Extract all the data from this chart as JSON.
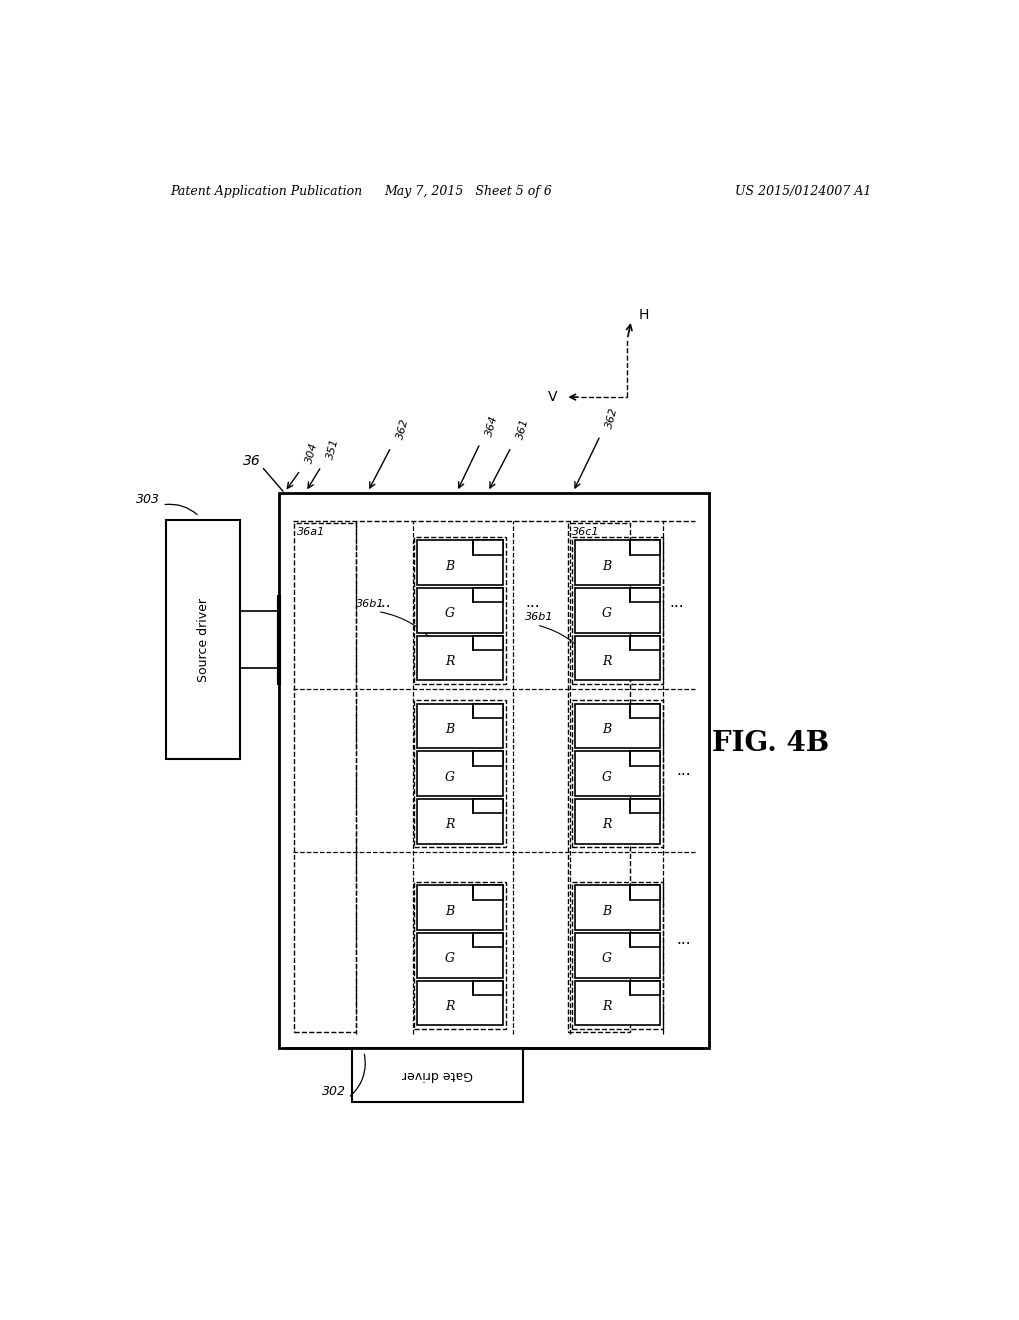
{
  "bg_color": "#ffffff",
  "header_left": "Patent Application Publication",
  "header_mid": "May 7, 2015   Sheet 5 of 6",
  "header_right": "US 2015/0124007 A1",
  "fig_label": "FIG. 4B",
  "source_driver_label": "Source driver",
  "source_driver_ref": "303",
  "gate_driver_label": "Gate driver",
  "gate_driver_ref": "302",
  "panel_ref": "36",
  "label_36a1": "36a1",
  "label_36c1": "36c1",
  "label_36b1": "36b1",
  "ref_labels_top": [
    "304",
    "351",
    "362",
    "364",
    "361",
    "362"
  ],
  "pixel_labels_top_to_bottom": [
    "B",
    "G",
    "R"
  ],
  "dir_H": "H",
  "dir_V": "V"
}
